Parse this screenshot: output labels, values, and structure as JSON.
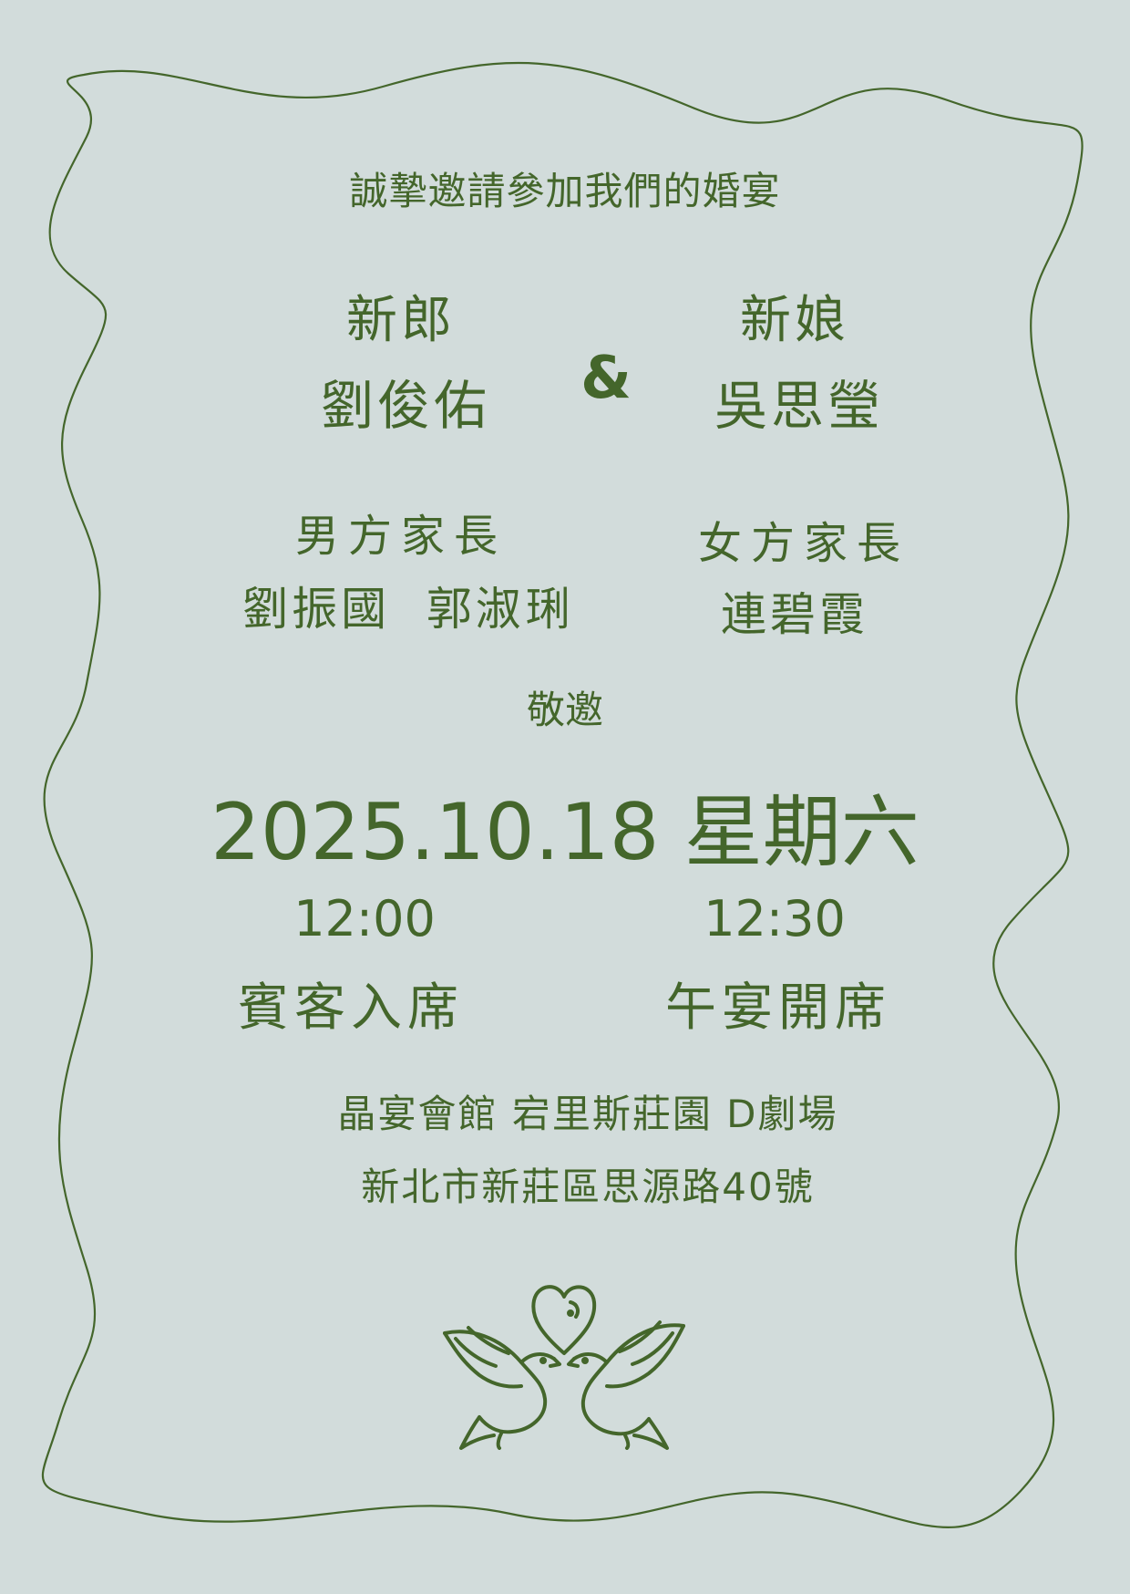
{
  "invitation": {
    "heading": "誠摯邀請參加我們的婚宴",
    "groom": {
      "role": "新郎",
      "name": "劉俊佑"
    },
    "bride": {
      "role": "新娘",
      "name": "吳思瑩"
    },
    "ampersand": "&",
    "groom_parents": {
      "role": "男方家長",
      "names": "劉振國  郭淑琍"
    },
    "bride_parents": {
      "role": "女方家長",
      "names": "連碧霞"
    },
    "respectfully": "敬邀",
    "date": "2025.10.18 星期六",
    "guest_arrival": {
      "time": "12:00",
      "label": "賓客入席"
    },
    "banquet_start": {
      "time": "12:30",
      "label": "午宴開席"
    },
    "venue": "晶宴會館 宕里斯莊園 D劇場",
    "address": "新北市新莊區思源路40號"
  },
  "decor": {
    "frame_icon": "wavy-frame-icon",
    "illustration_icon": "doves-heart-icon",
    "ink_color": "#44662b",
    "background_color": "#d2dcdb"
  }
}
